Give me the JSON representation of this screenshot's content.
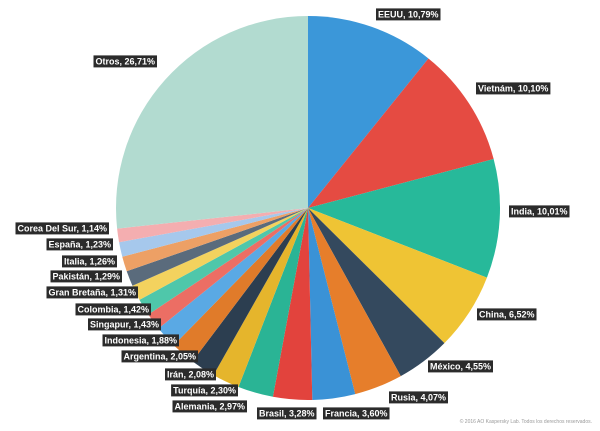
{
  "chart_data": {
    "type": "pie",
    "slices": [
      {
        "label": "EEUU, 10,79%",
        "value": 10.79,
        "color": "#3b97d9"
      },
      {
        "label": "Vietnám, 10,10%",
        "value": 10.1,
        "color": "#e54b42"
      },
      {
        "label": "India, 10,01%",
        "value": 10.01,
        "color": "#27b99a"
      },
      {
        "label": "China, 6,52%",
        "value": 6.52,
        "color": "#efc434"
      },
      {
        "label": "México, 4,55%",
        "value": 4.55,
        "color": "#34495e"
      },
      {
        "label": "Rusia, 4,07%",
        "value": 4.07,
        "color": "#e67e2b"
      },
      {
        "label": "Francia, 3,60%",
        "value": 3.6,
        "color": "#3a92d6"
      },
      {
        "label": "Brasil, 3,28%",
        "value": 3.28,
        "color": "#e2433d"
      },
      {
        "label": "Alemania, 2,97%",
        "value": 2.97,
        "color": "#2ab495"
      },
      {
        "label": "Turquía, 2,30%",
        "value": 2.3,
        "color": "#e5b52c"
      },
      {
        "label": "Irán, 2,08%",
        "value": 2.08,
        "color": "#2c3e50"
      },
      {
        "label": "Argentina, 2,05%",
        "value": 2.05,
        "color": "#e07b2a"
      },
      {
        "label": "Indonesia, 1,88%",
        "value": 1.88,
        "color": "#5aa9e4"
      },
      {
        "label": "Singapur, 1,43%",
        "value": 1.43,
        "color": "#ec6e64"
      },
      {
        "label": "Colombia, 1,42%",
        "value": 1.42,
        "color": "#4fc7aa"
      },
      {
        "label": "Gran Bretaña, 1,31%",
        "value": 1.31,
        "color": "#f3d25e"
      },
      {
        "label": "Pakistán, 1,29%",
        "value": 1.29,
        "color": "#5a6b7c"
      },
      {
        "label": "Italia, 1,26%",
        "value": 1.26,
        "color": "#eda065"
      },
      {
        "label": "España, 1,23%",
        "value": 1.23,
        "color": "#a6c8ec"
      },
      {
        "label": "Corea Del Sur, 1,14%",
        "value": 1.14,
        "color": "#f4aeb0"
      },
      {
        "label": "Otros, 26,71%",
        "value": 26.71,
        "color": "#b2dbd0"
      }
    ]
  },
  "credit": "© 2016 AO Kaspersky Lab. Todos los derechos reservados."
}
